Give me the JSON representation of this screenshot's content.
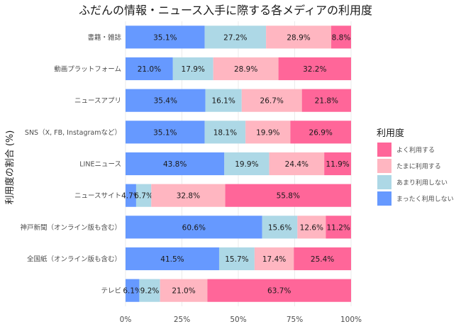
{
  "chart_data": {
    "type": "bar",
    "orientation": "horizontal",
    "stacked": true,
    "title": "ふだんの情報・ニュース入手に際する各メディアの利用度",
    "ylabel": "利用度の割合 (%)",
    "xlabel": "",
    "xlim": [
      0,
      100
    ],
    "x_ticks": [
      "0%",
      "25%",
      "50%",
      "75%",
      "100%"
    ],
    "x_tick_values": [
      0,
      25,
      50,
      75,
      100
    ],
    "legend_title": "利用度",
    "legend_position": "right",
    "categories": [
      "書籍・雑誌",
      "動画プラットフォーム",
      "ニュースアプリ",
      "SNS（X, FB, Instagramなど）",
      "LINEニュース",
      "ニュースサイト",
      "神戸新聞（オンライン版も含む）",
      "全国紙（オンライン版も含む）",
      "テレビ"
    ],
    "series": [
      {
        "name": "まったく利用しない",
        "color": "#6699ff",
        "values": [
          35.1,
          21.0,
          35.4,
          35.1,
          43.8,
          4.7,
          60.6,
          41.5,
          6.1
        ],
        "labels": [
          "35.1%",
          "21.0%",
          "35.4%",
          "35.1%",
          "43.8%",
          "4.7%",
          "60.6%",
          "41.5%",
          "6.1%"
        ]
      },
      {
        "name": "あまり利用しない",
        "color": "#add8e6",
        "values": [
          27.2,
          17.9,
          16.1,
          18.1,
          19.9,
          6.7,
          15.6,
          15.7,
          9.2
        ],
        "labels": [
          "27.2%",
          "17.9%",
          "16.1%",
          "18.1%",
          "19.9%",
          "6.7%",
          "15.6%",
          "15.7%",
          "9.2%"
        ]
      },
      {
        "name": "たまに利用する",
        "color": "#ffb6c1",
        "values": [
          28.9,
          28.9,
          26.7,
          19.9,
          24.4,
          32.8,
          12.6,
          17.4,
          21.0
        ],
        "labels": [
          "28.9%",
          "28.9%",
          "26.7%",
          "19.9%",
          "24.4%",
          "32.8%",
          "12.6%",
          "17.4%",
          "21.0%"
        ]
      },
      {
        "name": "よく利用する",
        "color": "#ff6699",
        "values": [
          8.8,
          32.2,
          21.8,
          26.9,
          11.9,
          55.8,
          11.2,
          25.4,
          63.7
        ],
        "labels": [
          "8.8%",
          "32.2%",
          "21.8%",
          "26.9%",
          "11.9%",
          "55.8%",
          "11.2%",
          "25.4%",
          "63.7%"
        ]
      }
    ],
    "legend_order": [
      "よく利用する",
      "たまに利用する",
      "あまり利用しない",
      "まったく利用しない"
    ],
    "grid": true
  }
}
